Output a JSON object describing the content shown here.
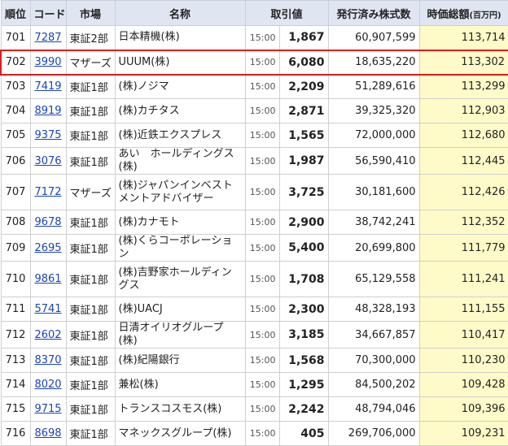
{
  "headers": {
    "rank": "順位",
    "code": "コード",
    "market": "市場",
    "name": "名称",
    "price": "取引値",
    "shares": "発行済み株式数",
    "cap": "時価総額",
    "cap_unit": "(百万円)"
  },
  "rows": [
    {
      "rank": "701",
      "code": "7287",
      "market": "東証2部",
      "name": "日本精機(株)",
      "time": "15:00",
      "price": "1,867",
      "shares": "60,907,599",
      "cap": "113,714"
    },
    {
      "rank": "702",
      "code": "3990",
      "market": "マザーズ",
      "name": "UUUM(株)",
      "time": "15:00",
      "price": "6,080",
      "shares": "18,635,220",
      "cap": "113,302",
      "highlighted": true
    },
    {
      "rank": "703",
      "code": "7419",
      "market": "東証1部",
      "name": "(株)ノジマ",
      "time": "15:00",
      "price": "2,209",
      "shares": "51,289,616",
      "cap": "113,299"
    },
    {
      "rank": "704",
      "code": "8919",
      "market": "東証1部",
      "name": "(株)カチタス",
      "time": "15:00",
      "price": "2,871",
      "shares": "39,325,320",
      "cap": "112,903"
    },
    {
      "rank": "705",
      "code": "9375",
      "market": "東証1部",
      "name": "(株)近鉄エクスプレス",
      "time": "15:00",
      "price": "1,565",
      "shares": "72,000,000",
      "cap": "112,680"
    },
    {
      "rank": "706",
      "code": "3076",
      "market": "東証1部",
      "name": "あい　ホールディングス(株)",
      "time": "15:00",
      "price": "1,987",
      "shares": "56,590,410",
      "cap": "112,445"
    },
    {
      "rank": "707",
      "code": "7172",
      "market": "マザーズ",
      "name": "(株)ジャパンインベストメントアドバイザー",
      "time": "15:00",
      "price": "3,725",
      "shares": "30,181,600",
      "cap": "112,426",
      "tall": true
    },
    {
      "rank": "708",
      "code": "9678",
      "market": "東証1部",
      "name": "(株)カナモト",
      "time": "15:00",
      "price": "2,900",
      "shares": "38,742,241",
      "cap": "112,352"
    },
    {
      "rank": "709",
      "code": "2695",
      "market": "東証1部",
      "name": "(株)くらコーポレーション",
      "time": "15:00",
      "price": "5,400",
      "shares": "20,699,800",
      "cap": "111,779"
    },
    {
      "rank": "710",
      "code": "9861",
      "market": "東証1部",
      "name": "(株)吉野家ホールディングス",
      "time": "15:00",
      "price": "1,708",
      "shares": "65,129,558",
      "cap": "111,241",
      "tall": true
    },
    {
      "rank": "711",
      "code": "5741",
      "market": "東証1部",
      "name": "(株)UACJ",
      "time": "15:00",
      "price": "2,300",
      "shares": "48,328,193",
      "cap": "111,155"
    },
    {
      "rank": "712",
      "code": "2602",
      "market": "東証1部",
      "name": "日清オイリオグループ(株)",
      "time": "15:00",
      "price": "3,185",
      "shares": "34,667,857",
      "cap": "110,417"
    },
    {
      "rank": "713",
      "code": "8370",
      "market": "東証1部",
      "name": "(株)紀陽銀行",
      "time": "15:00",
      "price": "1,568",
      "shares": "70,300,000",
      "cap": "110,230"
    },
    {
      "rank": "714",
      "code": "8020",
      "market": "東証1部",
      "name": "兼松(株)",
      "time": "15:00",
      "price": "1,295",
      "shares": "84,500,202",
      "cap": "109,428"
    },
    {
      "rank": "715",
      "code": "9715",
      "market": "東証1部",
      "name": "トランスコスモス(株)",
      "time": "15:00",
      "price": "2,242",
      "shares": "48,794,046",
      "cap": "109,396"
    },
    {
      "rank": "716",
      "code": "8698",
      "market": "東証1部",
      "name": "マネックスグループ(株)",
      "time": "15:00",
      "price": "405",
      "shares": "269,706,000",
      "cap": "109,231"
    }
  ]
}
